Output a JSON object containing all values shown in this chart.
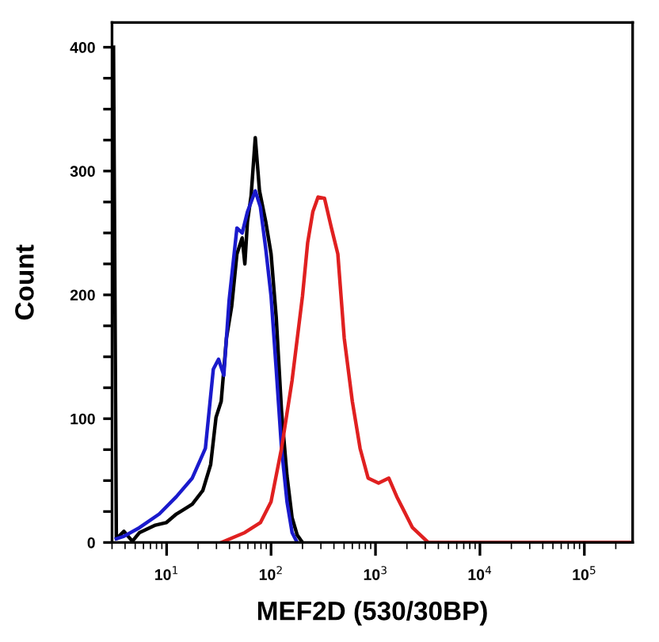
{
  "chart_data": {
    "type": "line",
    "xlabel": "MEF2D (530/30BP)",
    "ylabel": "Count",
    "log": "x",
    "xlim": [
      3,
      290000
    ],
    "ylim": [
      0,
      420
    ],
    "xticks": [
      {
        "value": 10,
        "label": "10$^{1}$"
      },
      {
        "value": 100,
        "label": "10$^{2}$"
      },
      {
        "value": 1000,
        "label": "10$^{3}$"
      },
      {
        "value": 10000,
        "label": "10$^{4}$"
      },
      {
        "value": 100000,
        "label": "10$^{5}$"
      }
    ],
    "yticks": [
      0,
      {
        "value": 25,
        "label": null
      },
      {
        "value": 50,
        "label": null
      },
      {
        "value": 75,
        "label": null
      },
      100,
      {
        "value": 125,
        "label": null
      },
      {
        "value": 150,
        "label": null
      },
      {
        "value": 175,
        "label": null
      },
      200,
      {
        "value": 225,
        "label": null
      },
      {
        "value": 250,
        "label": null
      },
      {
        "value": 275,
        "label": null
      },
      300,
      {
        "value": 325,
        "label": null
      },
      {
        "value": 350,
        "label": null
      },
      {
        "value": 375,
        "label": null
      },
      400
    ],
    "grid": false,
    "marker": "none",
    "line_style": "solid",
    "series": [
      {
        "color": "#000000",
        "x": [
          3.1,
          3.3,
          3.9,
          4.7,
          5.5,
          7.8,
          9.9,
          12.4,
          14.8,
          17.6,
          22.2,
          26.4,
          29.7,
          33.3,
          37.4,
          42,
          47.1,
          52.9,
          56.1,
          59.4,
          64.4,
          70.6,
          77.5,
          89,
          100,
          112,
          126,
          142,
          159,
          178,
          200
        ],
        "values": [
          400,
          3,
          9,
          1,
          8,
          14,
          16,
          23,
          27,
          31,
          42,
          63,
          101,
          114,
          165,
          191,
          233,
          246,
          225,
          259,
          280,
          327,
          284,
          259,
          233,
          182,
          106,
          54,
          20,
          6,
          0
        ]
      },
      {
        "color": "#1a1acc",
        "x": [
          3.3,
          3.9,
          5.5,
          8.5,
          12.4,
          17.6,
          23.5,
          28,
          31.4,
          35.3,
          39.6,
          47.1,
          52.9,
          59.4,
          70.6,
          79,
          89,
          100,
          112,
          126,
          142,
          159,
          178
        ],
        "values": [
          3,
          5,
          12,
          23,
          37,
          52,
          76,
          140,
          148,
          135,
          195,
          254,
          250,
          267,
          284,
          271,
          237,
          199,
          140,
          76,
          33,
          8,
          0
        ]
      },
      {
        "color": "#e02020",
        "x": [
          33.3,
          56,
          79,
          100,
          126,
          159,
          200,
          224,
          251,
          282,
          325,
          376,
          436,
          502,
          600,
          712,
          850,
          1070,
          1340,
          1600,
          2260,
          3200,
          290000
        ],
        "values": [
          0,
          8,
          16,
          33,
          76,
          131,
          199,
          242,
          267,
          279,
          278,
          255,
          233,
          165,
          114,
          76,
          52,
          48,
          52,
          37,
          12,
          0,
          0
        ]
      }
    ]
  }
}
